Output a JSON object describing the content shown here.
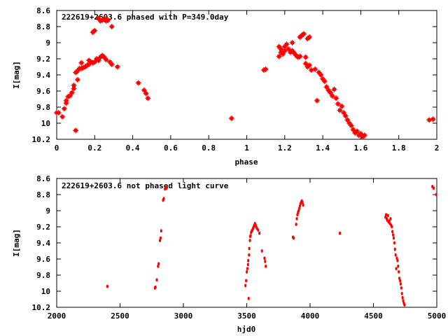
{
  "chart_data": [
    {
      "type": "scatter",
      "title": "222619+2603.6 phased with P=349.0day",
      "xlabel": "phase",
      "ylabel": "I[mag]",
      "xlim": [
        0,
        2
      ],
      "ylim": [
        10.2,
        8.6
      ],
      "y_inverted": true,
      "x_ticks": [
        "0",
        "0.2",
        "0.4",
        "0.6",
        "0.8",
        "1",
        "1.2",
        "1.4",
        "1.6",
        "1.8",
        "2"
      ],
      "y_ticks": [
        "8.6",
        "8.8",
        "9",
        "9.2",
        "9.4",
        "9.6",
        "9.8",
        "10",
        "10.2"
      ],
      "marker_color": "#ff0000",
      "points": [
        [
          0.0,
          9.87
        ],
        [
          0.01,
          9.87
        ],
        [
          0.03,
          9.92
        ],
        [
          0.04,
          9.82
        ],
        [
          0.05,
          9.75
        ],
        [
          0.05,
          9.72
        ],
        [
          0.06,
          9.67
        ],
        [
          0.07,
          9.66
        ],
        [
          0.08,
          9.62
        ],
        [
          0.09,
          9.57
        ],
        [
          0.09,
          9.53
        ],
        [
          0.1,
          10.09
        ],
        [
          0.1,
          9.37
        ],
        [
          0.11,
          9.35
        ],
        [
          0.11,
          9.46
        ],
        [
          0.12,
          9.32
        ],
        [
          0.13,
          9.32
        ],
        [
          0.13,
          9.25
        ],
        [
          0.14,
          9.31
        ],
        [
          0.15,
          9.3
        ],
        [
          0.16,
          9.28
        ],
        [
          0.17,
          9.27
        ],
        [
          0.17,
          9.22
        ],
        [
          0.18,
          9.24
        ],
        [
          0.19,
          9.25
        ],
        [
          0.19,
          8.87
        ],
        [
          0.2,
          8.85
        ],
        [
          0.2,
          9.24
        ],
        [
          0.21,
          9.2
        ],
        [
          0.22,
          9.22
        ],
        [
          0.22,
          8.7
        ],
        [
          0.23,
          8.73
        ],
        [
          0.23,
          9.18
        ],
        [
          0.24,
          8.72
        ],
        [
          0.24,
          9.16
        ],
        [
          0.25,
          8.7
        ],
        [
          0.25,
          9.18
        ],
        [
          0.26,
          8.73
        ],
        [
          0.26,
          9.21
        ],
        [
          0.27,
          8.72
        ],
        [
          0.28,
          9.24
        ],
        [
          0.29,
          8.8
        ],
        [
          0.29,
          9.27
        ],
        [
          0.32,
          9.3
        ],
        [
          0.43,
          9.5
        ],
        [
          0.46,
          9.59
        ],
        [
          0.47,
          9.63
        ],
        [
          0.48,
          9.69
        ],
        [
          0.92,
          9.94
        ],
        [
          1.09,
          9.34
        ],
        [
          1.1,
          9.33
        ],
        [
          1.17,
          9.17
        ],
        [
          1.17,
          9.05
        ],
        [
          1.18,
          9.08
        ],
        [
          1.18,
          9.12
        ],
        [
          1.19,
          9.14
        ],
        [
          1.2,
          9.1
        ],
        [
          1.2,
          9.05
        ],
        [
          1.21,
          9.02
        ],
        [
          1.22,
          9.08
        ],
        [
          1.23,
          9.12
        ],
        [
          1.24,
          9.1
        ],
        [
          1.24,
          9.0
        ],
        [
          1.25,
          9.13
        ],
        [
          1.26,
          9.16
        ],
        [
          1.27,
          9.18
        ],
        [
          1.28,
          8.93
        ],
        [
          1.28,
          9.17
        ],
        [
          1.29,
          8.91
        ],
        [
          1.3,
          8.89
        ],
        [
          1.31,
          9.18
        ],
        [
          1.31,
          9.26
        ],
        [
          1.32,
          9.3
        ],
        [
          1.32,
          8.95
        ],
        [
          1.33,
          9.28
        ],
        [
          1.33,
          8.93
        ],
        [
          1.34,
          9.34
        ],
        [
          1.36,
          9.33
        ],
        [
          1.37,
          9.72
        ],
        [
          1.38,
          9.37
        ],
        [
          1.39,
          9.4
        ],
        [
          1.4,
          9.45
        ],
        [
          1.41,
          9.48
        ],
        [
          1.42,
          9.55
        ],
        [
          1.43,
          9.59
        ],
        [
          1.44,
          9.62
        ],
        [
          1.45,
          9.66
        ],
        [
          1.46,
          9.58
        ],
        [
          1.47,
          9.69
        ],
        [
          1.48,
          9.76
        ],
        [
          1.49,
          9.84
        ],
        [
          1.5,
          9.79
        ],
        [
          1.51,
          9.87
        ],
        [
          1.52,
          9.91
        ],
        [
          1.53,
          9.96
        ],
        [
          1.54,
          10.0
        ],
        [
          1.55,
          10.03
        ],
        [
          1.56,
          10.08
        ],
        [
          1.57,
          10.12
        ],
        [
          1.58,
          10.1
        ],
        [
          1.59,
          10.15
        ],
        [
          1.6,
          10.13
        ],
        [
          1.61,
          10.17
        ],
        [
          1.62,
          10.15
        ],
        [
          1.96,
          9.96
        ],
        [
          1.98,
          9.95
        ]
      ]
    },
    {
      "type": "scatter",
      "title": "222619+2603.6 not phased light curve",
      "xlabel": "hjd0",
      "ylabel": "I[mag]",
      "xlim": [
        2000,
        5000
      ],
      "ylim": [
        10.2,
        8.6
      ],
      "y_inverted": true,
      "x_ticks": [
        "2000",
        "2500",
        "3000",
        "3500",
        "4000",
        "4500",
        "5000"
      ],
      "y_ticks": [
        "8.6",
        "8.8",
        "9",
        "9.2",
        "9.4",
        "9.6",
        "9.8",
        "10",
        "10.2"
      ],
      "marker_color": "#ff0000",
      "points": [
        [
          2400,
          9.94
        ],
        [
          2775,
          9.96
        ],
        [
          2780,
          9.95
        ],
        [
          2790,
          9.86
        ],
        [
          2800,
          9.69
        ],
        [
          2805,
          9.66
        ],
        [
          2815,
          9.37
        ],
        [
          2820,
          9.34
        ],
        [
          2825,
          9.25
        ],
        [
          2840,
          8.87
        ],
        [
          2845,
          8.85
        ],
        [
          2855,
          8.73
        ],
        [
          2860,
          8.71
        ],
        [
          2865,
          8.72
        ],
        [
          2870,
          8.71
        ],
        [
          3490,
          9.93
        ],
        [
          3495,
          9.87
        ],
        [
          3500,
          9.76
        ],
        [
          3505,
          9.72
        ],
        [
          3510,
          9.67
        ],
        [
          3512,
          9.62
        ],
        [
          3515,
          10.09
        ],
        [
          3518,
          9.55
        ],
        [
          3520,
          9.47
        ],
        [
          3525,
          9.37
        ],
        [
          3528,
          9.32
        ],
        [
          3530,
          9.31
        ],
        [
          3535,
          9.27
        ],
        [
          3540,
          9.25
        ],
        [
          3545,
          9.24
        ],
        [
          3550,
          9.22
        ],
        [
          3555,
          9.2
        ],
        [
          3560,
          9.18
        ],
        [
          3565,
          9.16
        ],
        [
          3570,
          9.18
        ],
        [
          3575,
          9.2
        ],
        [
          3580,
          9.22
        ],
        [
          3590,
          9.24
        ],
        [
          3600,
          9.28
        ],
        [
          3620,
          9.5
        ],
        [
          3640,
          9.59
        ],
        [
          3645,
          9.63
        ],
        [
          3650,
          9.69
        ],
        [
          3865,
          9.33
        ],
        [
          3870,
          9.34
        ],
        [
          3890,
          9.17
        ],
        [
          3895,
          9.1
        ],
        [
          3900,
          9.05
        ],
        [
          3905,
          9.02
        ],
        [
          3910,
          9.0
        ],
        [
          3915,
          8.97
        ],
        [
          3920,
          8.94
        ],
        [
          3925,
          8.91
        ],
        [
          3930,
          8.89
        ],
        [
          3935,
          8.88
        ],
        [
          3940,
          8.9
        ],
        [
          3945,
          8.93
        ],
        [
          4235,
          9.28
        ],
        [
          4595,
          9.08
        ],
        [
          4600,
          9.05
        ],
        [
          4605,
          9.1
        ],
        [
          4610,
          9.12
        ],
        [
          4615,
          9.06
        ],
        [
          4620,
          9.14
        ],
        [
          4625,
          9.13
        ],
        [
          4630,
          9.16
        ],
        [
          4635,
          9.1
        ],
        [
          4640,
          9.18
        ],
        [
          4645,
          9.2
        ],
        [
          4650,
          9.26
        ],
        [
          4655,
          9.3
        ],
        [
          4660,
          9.34
        ],
        [
          4665,
          9.4
        ],
        [
          4670,
          9.48
        ],
        [
          4675,
          9.55
        ],
        [
          4680,
          9.72
        ],
        [
          4685,
          9.59
        ],
        [
          4690,
          9.62
        ],
        [
          4695,
          9.69
        ],
        [
          4700,
          9.76
        ],
        [
          4705,
          9.84
        ],
        [
          4710,
          9.87
        ],
        [
          4715,
          9.91
        ],
        [
          4720,
          9.96
        ],
        [
          4725,
          10.03
        ],
        [
          4730,
          10.08
        ],
        [
          4735,
          10.12
        ],
        [
          4740,
          10.15
        ],
        [
          4745,
          10.17
        ],
        [
          4965,
          8.7
        ],
        [
          4975,
          8.72
        ],
        [
          4995,
          8.8
        ]
      ]
    }
  ]
}
